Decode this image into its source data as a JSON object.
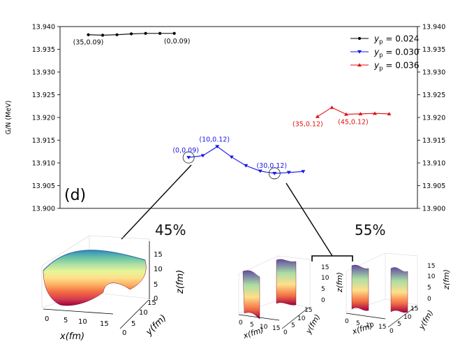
{
  "chart_data": {
    "type": "line",
    "panel_label": "(d)",
    "ylabel": "G/N (MeV)",
    "ylim": [
      13.9,
      13.94
    ],
    "yticks": [
      "13.900",
      "13.905",
      "13.910",
      "13.915",
      "13.920",
      "13.925",
      "13.930",
      "13.935",
      "13.940"
    ],
    "x_index_range": [
      0,
      23
    ],
    "series": [
      {
        "name": "yp=0.024",
        "legend_base": "y",
        "legend_sub": "p",
        "legend_val": "= 0.024",
        "color": "#000000",
        "marker": "circle",
        "x": [
          1,
          2,
          3,
          4,
          5,
          6,
          7
        ],
        "y": [
          13.9382,
          13.9381,
          13.9382,
          13.9384,
          13.9385,
          13.9385,
          13.9385
        ]
      },
      {
        "name": "yp=0.030",
        "legend_base": "y",
        "legend_sub": "p",
        "legend_val": "= 0.030",
        "color": "#1515e8",
        "marker": "triangle-down",
        "x": [
          8,
          9,
          10,
          11,
          12,
          13,
          14,
          15,
          16
        ],
        "y": [
          13.9112,
          13.9116,
          13.9136,
          13.9113,
          13.9094,
          13.9082,
          13.9077,
          13.9079,
          13.9081
        ]
      },
      {
        "name": "yp=0.036",
        "legend_base": "y",
        "legend_sub": "p",
        "legend_val": "= 0.036",
        "color": "#e01010",
        "marker": "triangle-up",
        "x": [
          17,
          18,
          19,
          20,
          21,
          22
        ],
        "y": [
          13.9202,
          13.9222,
          13.9207,
          13.9208,
          13.9209,
          13.9208
        ]
      }
    ],
    "annotations": [
      {
        "text": "(35,0.09)",
        "series": 0,
        "point": 0,
        "color": "#000000"
      },
      {
        "text": "(0,0.09)",
        "series": 0,
        "point": 6,
        "color": "#000000"
      },
      {
        "text": "(0,0.09)",
        "series": 1,
        "point": 0,
        "color": "#1515e8"
      },
      {
        "text": "(10,0.12)",
        "series": 1,
        "point": 2,
        "color": "#1515e8"
      },
      {
        "text": "(30,0.12)",
        "series": 1,
        "point": 6,
        "color": "#1515e8"
      },
      {
        "text": "(35,0.12)",
        "series": 2,
        "point": 0,
        "color": "#e01010"
      },
      {
        "text": "(45,0.12)",
        "series": 2,
        "point": 2,
        "color": "#e01010"
      }
    ],
    "circled_points": [
      {
        "series": 1,
        "point": 0
      },
      {
        "series": 1,
        "point": 6
      }
    ],
    "insets": [
      {
        "percent": "45%",
        "xlabel": "x(fm)",
        "ylabel": "y(fm)",
        "zlabel": "z(fm)",
        "xticks": [
          "0",
          "5",
          "10",
          "15"
        ],
        "yticks": [
          "0",
          "5",
          "10",
          "15"
        ],
        "zticks": [
          "0",
          "5",
          "10",
          "15"
        ]
      },
      {
        "percent": "55%",
        "xlabel": "x(fm)",
        "ylabel": "y(fm)",
        "zlabel": "z(fm)",
        "xticks": [
          "0",
          "5",
          "10",
          "15"
        ],
        "yticks": [
          "0",
          "5",
          "10",
          "15"
        ],
        "zticks": [
          "0",
          "5",
          "10",
          "15"
        ]
      },
      {
        "percent": "",
        "xlabel": "x(fm)",
        "ylabel": "y(fm)",
        "zlabel": "z(fm)",
        "xticks": [
          "0",
          "5",
          "10",
          "15"
        ],
        "yticks": [
          "0",
          "5",
          "10",
          "15"
        ],
        "zticks": [
          "0",
          "5",
          "10",
          "15"
        ]
      }
    ]
  }
}
